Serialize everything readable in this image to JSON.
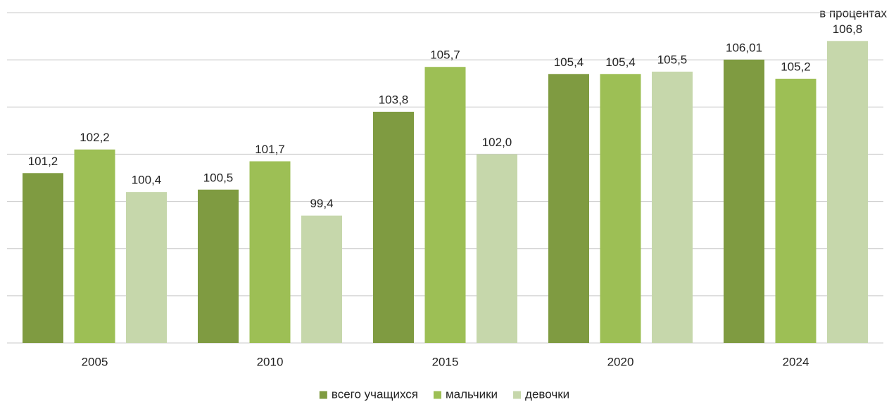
{
  "chart_data": {
    "type": "bar",
    "annotation": "в процентах",
    "categories": [
      "2005",
      "2010",
      "2015",
      "2020",
      "2024"
    ],
    "series": [
      {
        "name": "всего учащихся",
        "color": "#7f9b41",
        "values": [
          101.2,
          100.5,
          103.8,
          105.4,
          106.01
        ],
        "value_labels": [
          "101,2",
          "100,5",
          "103,8",
          "105,4",
          "106,01"
        ]
      },
      {
        "name": "мальчики",
        "color": "#9dbf55",
        "values": [
          102.2,
          101.7,
          105.7,
          105.4,
          105.2
        ],
        "value_labels": [
          "102,2",
          "101,7",
          "105,7",
          "105,4",
          "105,2"
        ]
      },
      {
        "name": "девочки",
        "color": "#c6d7ab",
        "values": [
          100.4,
          99.4,
          102.0,
          105.5,
          106.8
        ],
        "value_labels": [
          "100,4",
          "99,4",
          "102,0",
          "105,5",
          "106,8"
        ]
      }
    ],
    "ylim": [
      94,
      108
    ],
    "yticks": [
      94,
      96,
      98,
      100,
      102,
      104,
      106,
      108
    ],
    "grid": true,
    "legend": "bottom"
  }
}
